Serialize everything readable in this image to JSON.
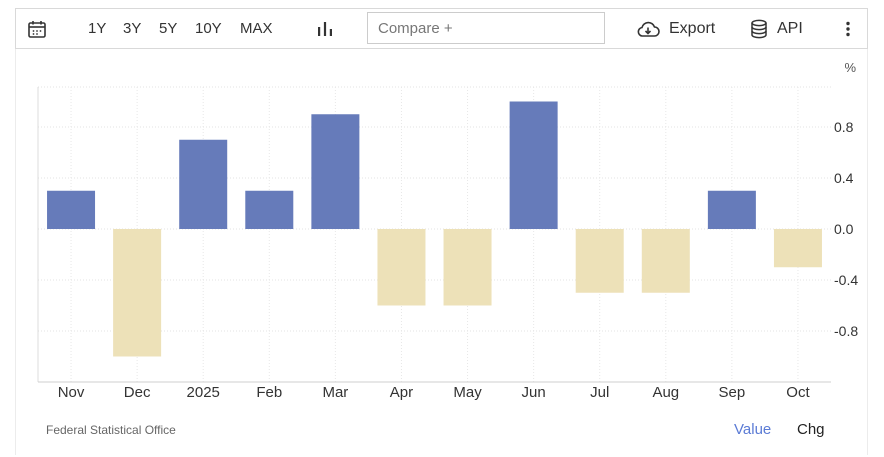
{
  "toolbar": {
    "ranges": [
      "1Y",
      "3Y",
      "5Y",
      "10Y",
      "MAX"
    ],
    "compare_placeholder": "Compare +",
    "export_label": "Export",
    "api_label": "API"
  },
  "chart_data": {
    "type": "bar",
    "unit_label": "%",
    "categories": [
      "Nov",
      "Dec",
      "2025",
      "Feb",
      "Mar",
      "Apr",
      "May",
      "Jun",
      "Jul",
      "Aug",
      "Sep",
      "Oct"
    ],
    "values": [
      0.3,
      -1.0,
      0.7,
      0.3,
      0.9,
      -0.6,
      -0.6,
      1.0,
      -0.5,
      -0.5,
      0.3,
      -0.3
    ],
    "y_ticks": [
      "0.8",
      "0.4",
      "0.0",
      "-0.4",
      "-0.8"
    ],
    "ylim": [
      -1.2,
      1.1
    ],
    "grid": true,
    "colors": {
      "positive": "#667bba",
      "negative": "#ede1b8"
    }
  },
  "footer": {
    "source": "Federal Statistical Office",
    "value_label": "Value",
    "chg_label": "Chg",
    "value_color": "#5b7bd5"
  }
}
